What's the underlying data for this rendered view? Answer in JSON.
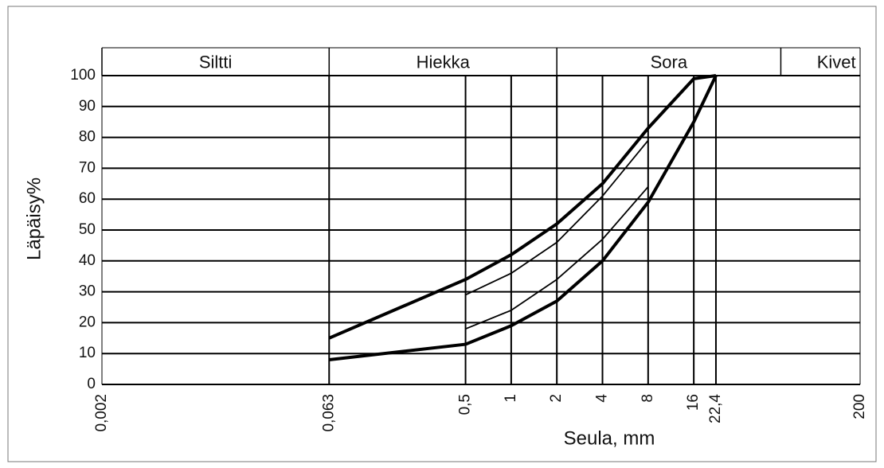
{
  "chart_data": {
    "type": "line",
    "x_label": "Seula, mm",
    "y_label": "Läpäisy%",
    "log_x": true,
    "grid": true,
    "xlim": [
      0.002,
      200
    ],
    "ylim": [
      0,
      100
    ],
    "xticks": [
      {
        "value": 0.002,
        "label": "0,002"
      },
      {
        "value": 0.063,
        "label": "0,063"
      },
      {
        "value": 0.5,
        "label": "0,5"
      },
      1,
      2,
      4,
      8,
      16,
      {
        "value": 22.4,
        "label": "22,4"
      },
      200
    ],
    "yticks": [
      0,
      10,
      20,
      30,
      40,
      50,
      60,
      70,
      80,
      90,
      100
    ],
    "zones": [
      {
        "label": "Siltti",
        "from": 0.002,
        "to": 0.063
      },
      {
        "label": "Hiekka",
        "from": 0.063,
        "to": 2
      },
      {
        "label": "Sora",
        "from": 2,
        "to": 60
      },
      {
        "label": "Kivet",
        "from": 60,
        "to": 200
      }
    ],
    "series": [
      {
        "color": "#000000",
        "width": 4,
        "x": [
          0.063,
          0.5,
          1,
          2,
          4,
          8,
          16,
          22.4
        ],
        "values": [
          15,
          34,
          42,
          52,
          65,
          83,
          99,
          100
        ]
      },
      {
        "color": "#000000",
        "width": 4,
        "x": [
          0.063,
          0.5,
          1,
          2,
          4,
          8,
          16,
          22.4
        ],
        "values": [
          8,
          13,
          19,
          27,
          40,
          59,
          85,
          100
        ]
      },
      {
        "color": "#000000",
        "width": 1.8,
        "x": [
          0.5,
          1,
          2,
          4,
          8
        ],
        "values": [
          29,
          36,
          46,
          61,
          79
        ]
      },
      {
        "color": "#000000",
        "width": 1.8,
        "x": [
          0.5,
          1,
          2,
          4,
          8
        ],
        "values": [
          18,
          24,
          34,
          47,
          64
        ]
      }
    ]
  }
}
